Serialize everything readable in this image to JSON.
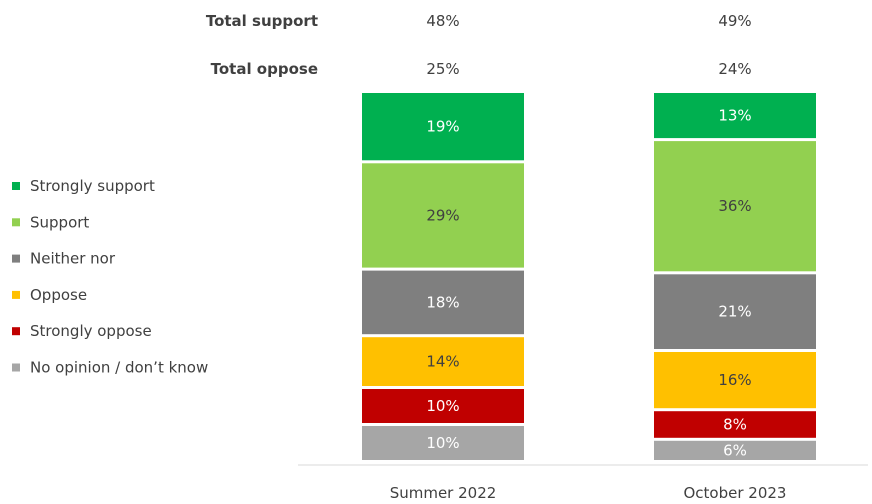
{
  "chart_data": {
    "type": "bar",
    "stacked": true,
    "categories": [
      "Summer 2022",
      "October 2023"
    ],
    "series": [
      {
        "name": "Strongly support",
        "color": "#00b050",
        "values": [
          19,
          13
        ]
      },
      {
        "name": "Support",
        "color": "#92d050",
        "values": [
          29,
          36
        ]
      },
      {
        "name": "Neither nor",
        "color": "#7f7f7f",
        "values": [
          18,
          21
        ]
      },
      {
        "name": "Oppose",
        "color": "#ffc000",
        "values": [
          14,
          16
        ]
      },
      {
        "name": "Strongly oppose",
        "color": "#c00000",
        "values": [
          10,
          8
        ]
      },
      {
        "name": "No opinion / don’t know",
        "color": "#a6a6a6",
        "values": [
          10,
          6
        ]
      }
    ],
    "summary_rows": [
      {
        "label": "Total support",
        "values": [
          "48%",
          "49%"
        ]
      },
      {
        "label": "Total oppose",
        "values": [
          "25%",
          "24%"
        ]
      }
    ],
    "value_suffix": "%",
    "legend_position": "left",
    "grid": false
  }
}
